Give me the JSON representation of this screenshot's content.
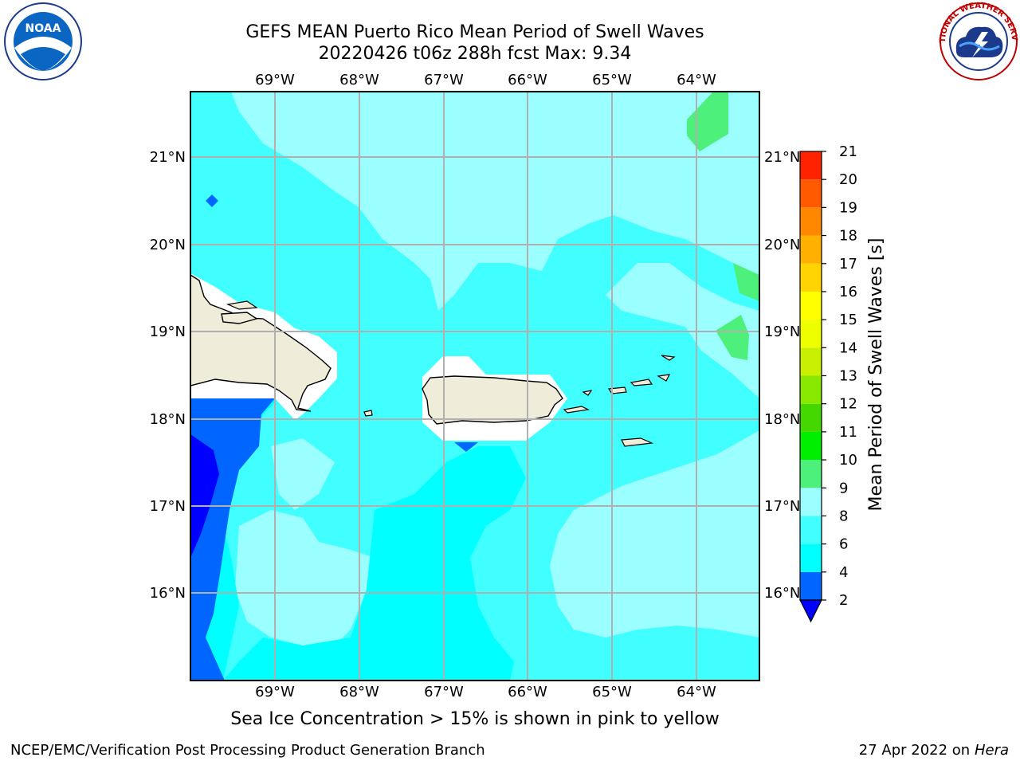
{
  "header": {
    "title_line1": "GEFS MEAN Puerto Rico Mean Period of Swell Waves",
    "title_line2": "20220426 t06z 288h fcst   Max: 9.34"
  },
  "logos": {
    "left": "NOAA",
    "right": "NATIONAL WEATHER SERVICE"
  },
  "map": {
    "lon_labels": [
      "69°W",
      "68°W",
      "67°W",
      "66°W",
      "65°W",
      "64°W"
    ],
    "lat_labels": [
      "21°N",
      "20°N",
      "19°N",
      "18°N",
      "17°N",
      "16°N"
    ],
    "ocean_fill": "#42ffff",
    "land_color": "#efedd9"
  },
  "colorbar": {
    "label": "Mean Period of Swell Waves [s]",
    "ticks": [
      "2",
      "4",
      "6",
      "8",
      "9",
      "10",
      "11",
      "12",
      "13",
      "14",
      "15",
      "16",
      "17",
      "18",
      "19",
      "20",
      "21"
    ],
    "colors": [
      "#0066ff",
      "#00ffff",
      "#42ffff",
      "#9cffff",
      "#4cf07a",
      "#00ee00",
      "#44d700",
      "#88e800",
      "#c8f000",
      "#eeff00",
      "#ffff00",
      "#ffd400",
      "#ffb000",
      "#ff8800",
      "#ff5a00",
      "#ff2200"
    ],
    "under_color": "#0000ff"
  },
  "caption": "Sea Ice Concentration > 15% is shown in pink to yellow",
  "footer": {
    "left": "NCEP/EMC/Verification Post Processing Product Generation Branch",
    "right_date": "27 Apr 2022 on",
    "right_host": "Hera"
  }
}
